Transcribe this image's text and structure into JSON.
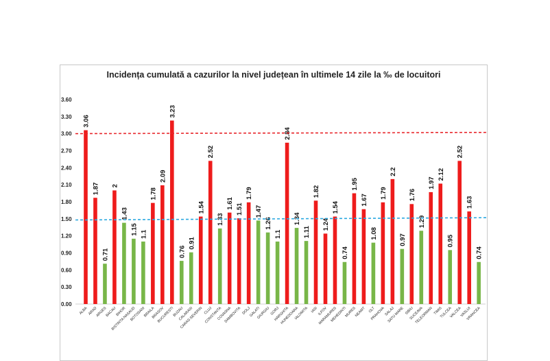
{
  "chart_data": {
    "type": "bar",
    "title": "Incidența cumulată a cazurilor la nivel județean în ultimele 14 zile la ‰ de locuitori",
    "xlabel": "",
    "ylabel": "",
    "ylim": [
      0,
      3.6
    ],
    "yticks": [
      "0.00",
      "0.30",
      "0.60",
      "0.90",
      "1.20",
      "1.50",
      "1.80",
      "2.10",
      "2.40",
      "2.70",
      "3.00",
      "3.30",
      "3.60"
    ],
    "grid": false,
    "colors": {
      "above": "#ee1c1c",
      "below": "#78b648",
      "line_high": "#e8262b",
      "line_low": "#2aa8e0"
    },
    "reference_lines": [
      {
        "value": 3.0,
        "style": "dashed",
        "color": "#e8262b"
      },
      {
        "value": 1.5,
        "style": "dashed",
        "color": "#2aa8e0"
      }
    ],
    "categories": [
      "ALBA",
      "ARAD",
      "ARGES",
      "BACAU",
      "BIHOR",
      "BISTRITA NASAUD",
      "BOTOSANI",
      "BRAILA",
      "BRASOV",
      "BUCURESTI",
      "BUZAU",
      "CALARASI",
      "CARAS-SEVERIN",
      "CLUJ",
      "CONSTANTA",
      "COVASNA",
      "DAMBOVITA",
      "DOLJ",
      "GALATI",
      "GIURGIU",
      "GORJ",
      "HARGHITA",
      "HUNEDOARA",
      "IALOMITA",
      "IASI",
      "ILFOV",
      "MARAMURES",
      "MEHEDINTI",
      "MURES",
      "NEAMT",
      "OLT",
      "PRAHOVA",
      "SALAJ",
      "SATU MARE",
      "SIBIU",
      "SUCEAVA",
      "TELEORMAN",
      "TIMIS",
      "TULCEA",
      "VALCEA",
      "VASLUI",
      "VRANCEA"
    ],
    "values": [
      3.06,
      1.87,
      0.71,
      2,
      1.43,
      1.15,
      1.1,
      1.78,
      2.09,
      3.23,
      0.76,
      0.91,
      1.54,
      2.52,
      1.33,
      1.61,
      1.51,
      1.79,
      1.47,
      1.26,
      1.1,
      2.84,
      1.34,
      1.11,
      1.82,
      1.24,
      1.54,
      0.74,
      1.95,
      1.67,
      1.08,
      1.79,
      2.2,
      0.97,
      1.76,
      1.29,
      1.97,
      2.12,
      0.95,
      2.52,
      1.63,
      0.74
    ],
    "value_labels": [
      "3.06",
      "1.87",
      "0.71",
      "2",
      "1.43",
      "1.15",
      "1.1",
      "1.78",
      "2.09",
      "3.23",
      "0.76",
      "0.91",
      "1.54",
      "2.52",
      "1.33",
      "1.61",
      "1.51",
      "1.79",
      "1.47",
      "1.26",
      "1.1",
      "2.84",
      "1.34",
      "1.11",
      "1.82",
      "1.24",
      "1.54",
      "0.74",
      "1.95",
      "1.67",
      "1.08",
      "1.79",
      "2.2",
      "0.97",
      "1.76",
      "1.29",
      "1.97",
      "2.12",
      "0.95",
      "2.52",
      "1.63",
      "0.74"
    ],
    "bar_color_class": [
      "above",
      "above",
      "below",
      "above",
      "below",
      "below",
      "below",
      "above",
      "above",
      "above",
      "below",
      "below",
      "above",
      "above",
      "below",
      "above",
      "above",
      "above",
      "below",
      "below",
      "below",
      "above",
      "below",
      "below",
      "above",
      "above",
      "above",
      "below",
      "above",
      "above",
      "below",
      "above",
      "above",
      "below",
      "above",
      "below",
      "above",
      "above",
      "below",
      "above",
      "above",
      "below"
    ]
  }
}
